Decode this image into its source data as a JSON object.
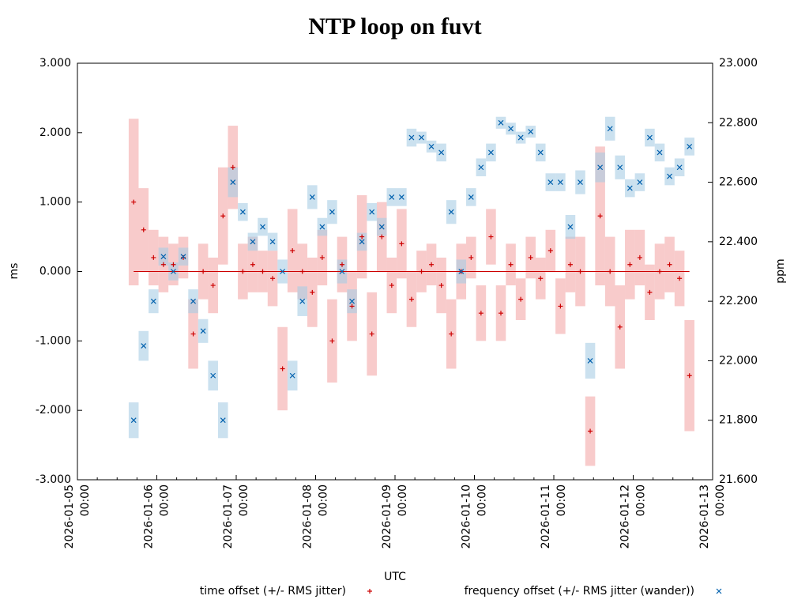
{
  "chart_data": {
    "type": "scatter",
    "title": "NTP loop on fuvt",
    "xlabel": "UTC",
    "ylabel": "ms",
    "y2label": "ppm",
    "xlim": [
      "2026-01-05 00:00",
      "2026-01-13 00:00"
    ],
    "xticks": [
      "2026-01-05 00:00",
      "2026-01-06 00:00",
      "2026-01-07 00:00",
      "2026-01-08 00:00",
      "2026-01-09 00:00",
      "2026-01-10 00:00",
      "2026-01-11 00:00",
      "2026-01-12 00:00",
      "2026-01-13 00:00"
    ],
    "ylim": [
      -3,
      3
    ],
    "yticks": [
      {
        "value": -3,
        "label": "-3.000"
      },
      {
        "value": -2,
        "label": "-2.000"
      },
      {
        "value": -1,
        "label": "-1.000"
      },
      {
        "value": 0,
        "label": "0.000"
      },
      {
        "value": 1,
        "label": "1.000"
      },
      {
        "value": 2,
        "label": "2.000"
      },
      {
        "value": 3,
        "label": "3.000"
      }
    ],
    "y2lim": [
      21.6,
      23.0
    ],
    "y2ticks": [
      {
        "value": 21.6,
        "label": "21.600"
      },
      {
        "value": 21.8,
        "label": "21.800"
      },
      {
        "value": 22.0,
        "label": "22.000"
      },
      {
        "value": 22.2,
        "label": "22.200"
      },
      {
        "value": 22.4,
        "label": "22.400"
      },
      {
        "value": 22.6,
        "label": "22.600"
      },
      {
        "value": 22.8,
        "label": "22.800"
      },
      {
        "value": 23.0,
        "label": "23.000"
      }
    ],
    "hline": 0,
    "x": [
      "2026-01-05 17:00",
      "2026-01-05 20:00",
      "2026-01-05 23:00",
      "2026-01-06 02:00",
      "2026-01-06 05:00",
      "2026-01-06 08:00",
      "2026-01-06 11:00",
      "2026-01-06 14:00",
      "2026-01-06 17:00",
      "2026-01-06 20:00",
      "2026-01-06 23:00",
      "2026-01-07 02:00",
      "2026-01-07 05:00",
      "2026-01-07 08:00",
      "2026-01-07 11:00",
      "2026-01-07 14:00",
      "2026-01-07 17:00",
      "2026-01-07 20:00",
      "2026-01-07 23:00",
      "2026-01-08 02:00",
      "2026-01-08 05:00",
      "2026-01-08 08:00",
      "2026-01-08 11:00",
      "2026-01-08 14:00",
      "2026-01-08 17:00",
      "2026-01-08 20:00",
      "2026-01-08 23:00",
      "2026-01-09 02:00",
      "2026-01-09 05:00",
      "2026-01-09 08:00",
      "2026-01-09 11:00",
      "2026-01-09 14:00",
      "2026-01-09 17:00",
      "2026-01-09 20:00",
      "2026-01-09 23:00",
      "2026-01-10 02:00",
      "2026-01-10 05:00",
      "2026-01-10 08:00",
      "2026-01-10 11:00",
      "2026-01-10 14:00",
      "2026-01-10 17:00",
      "2026-01-10 20:00",
      "2026-01-10 23:00",
      "2026-01-11 02:00",
      "2026-01-11 05:00",
      "2026-01-11 08:00",
      "2026-01-11 11:00",
      "2026-01-11 14:00",
      "2026-01-11 17:00",
      "2026-01-11 20:00",
      "2026-01-11 23:00",
      "2026-01-12 02:00",
      "2026-01-12 05:00",
      "2026-01-12 08:00",
      "2026-01-12 11:00",
      "2026-01-12 14:00",
      "2026-01-12 17:00"
    ],
    "series": [
      {
        "name": "time offset (+/- RMS jitter)",
        "color": "#cc0000",
        "band_color": "#f4a9a9",
        "marker": "plus",
        "axis": "y",
        "values": [
          1.0,
          0.6,
          0.2,
          0.1,
          0.1,
          0.2,
          -0.9,
          0.0,
          -0.2,
          0.8,
          1.5,
          0.0,
          0.1,
          0.0,
          -0.1,
          -1.4,
          0.3,
          0.0,
          -0.3,
          0.2,
          -1.0,
          0.1,
          -0.5,
          0.5,
          -0.9,
          0.5,
          -0.2,
          0.4,
          -0.4,
          0.0,
          0.1,
          -0.2,
          -0.9,
          0.0,
          0.2,
          -0.6,
          0.5,
          -0.6,
          0.1,
          -0.4,
          0.2,
          -0.1,
          0.3,
          -0.5,
          0.1,
          0.0,
          -2.3,
          0.8,
          0.0,
          -0.8,
          0.1,
          0.2,
          -0.3,
          0.0,
          0.1,
          -0.1,
          -1.5
        ],
        "errors": [
          1.2,
          0.6,
          0.4,
          0.4,
          0.3,
          0.3,
          0.5,
          0.4,
          0.4,
          0.7,
          0.6,
          0.4,
          0.4,
          0.3,
          0.4,
          0.6,
          0.6,
          0.4,
          0.5,
          0.4,
          0.6,
          0.4,
          0.5,
          0.6,
          0.6,
          0.5,
          0.4,
          0.5,
          0.4,
          0.3,
          0.3,
          0.4,
          0.5,
          0.4,
          0.3,
          0.4,
          0.4,
          0.4,
          0.3,
          0.3,
          0.3,
          0.3,
          0.3,
          0.4,
          0.4,
          0.5,
          0.5,
          1.0,
          0.5,
          0.6,
          0.5,
          0.4,
          0.4,
          0.4,
          0.4,
          0.4,
          0.8
        ]
      },
      {
        "name": "frequency offset (+/- RMS jitter (wander))",
        "color": "#0060ad",
        "band_color": "#a8cde4",
        "marker": "cross",
        "axis": "y2",
        "values": [
          21.8,
          22.05,
          22.2,
          22.35,
          22.3,
          22.35,
          22.2,
          22.1,
          21.95,
          21.8,
          22.6,
          22.5,
          22.4,
          22.45,
          22.4,
          22.3,
          21.95,
          22.2,
          22.55,
          22.45,
          22.5,
          22.3,
          22.2,
          22.4,
          22.5,
          22.45,
          22.55,
          22.55,
          22.75,
          22.75,
          22.72,
          22.7,
          22.5,
          22.3,
          22.55,
          22.65,
          22.7,
          22.8,
          22.78,
          22.75,
          22.77,
          22.7,
          22.6,
          22.6,
          22.45,
          22.6,
          22.0,
          22.65,
          22.78,
          22.65,
          22.58,
          22.6,
          22.75,
          22.7,
          22.62,
          22.65,
          22.72
        ],
        "errors": [
          0.06,
          0.05,
          0.04,
          0.03,
          0.03,
          0.03,
          0.04,
          0.04,
          0.05,
          0.06,
          0.05,
          0.03,
          0.03,
          0.03,
          0.03,
          0.04,
          0.05,
          0.05,
          0.04,
          0.03,
          0.04,
          0.04,
          0.04,
          0.03,
          0.03,
          0.03,
          0.03,
          0.03,
          0.03,
          0.02,
          0.02,
          0.03,
          0.04,
          0.04,
          0.03,
          0.03,
          0.03,
          0.02,
          0.02,
          0.02,
          0.02,
          0.03,
          0.03,
          0.03,
          0.04,
          0.04,
          0.06,
          0.05,
          0.04,
          0.04,
          0.03,
          0.03,
          0.03,
          0.03,
          0.03,
          0.03,
          0.03
        ]
      }
    ]
  }
}
